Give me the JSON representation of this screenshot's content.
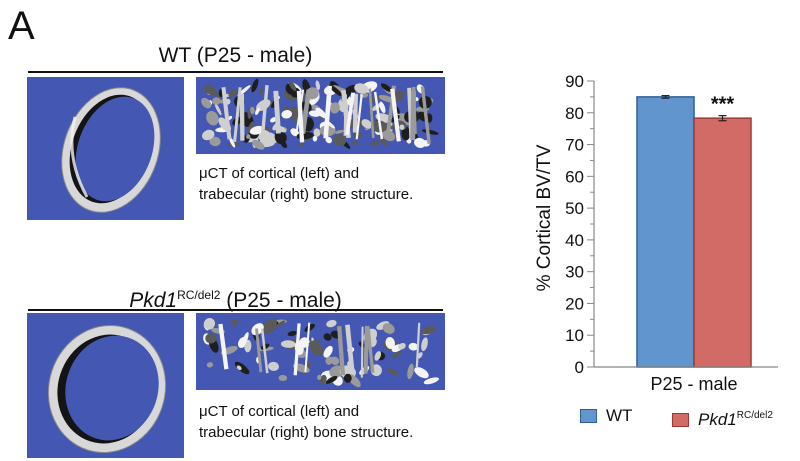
{
  "panel_label": "A",
  "groups": [
    {
      "title": "WT (P25 - male)",
      "caption_lines": [
        "μCT of cortical (left) and",
        "trabecular (right) bone structure."
      ]
    },
    {
      "title_gene": "Pkd1",
      "title_super": "RC/del2",
      "title_rest": " (P25 - male)",
      "caption_lines": [
        "μCT of cortical (left) and",
        "trabecular (right) bone structure."
      ]
    }
  ],
  "colors": {
    "tile_bg": "#4457b3",
    "wt_bar": "#6195cd",
    "wt_edge": "#2f5f99",
    "mut_bar": "#d26a66",
    "mut_edge": "#9a3a37"
  },
  "legend": {
    "wt": "WT",
    "mut_gene": "Pkd1",
    "mut_super": "RC/del2"
  },
  "chart_data": {
    "type": "bar",
    "categories": [
      "P25 - male"
    ],
    "series": [
      {
        "name": "WT",
        "values": [
          85
        ],
        "error": [
          0.4
        ]
      },
      {
        "name": "Pkd1 RC/del2",
        "values": [
          78.3
        ],
        "error": [
          0.8
        ]
      }
    ],
    "ylabel": "% Cortical BV/TV",
    "ylim": [
      0,
      90
    ],
    "yticks": [
      0,
      10,
      20,
      30,
      40,
      50,
      60,
      70,
      80,
      90
    ],
    "yticks_minor_step": 5,
    "significance": "***",
    "grid": false,
    "legend_position": "bottom"
  }
}
